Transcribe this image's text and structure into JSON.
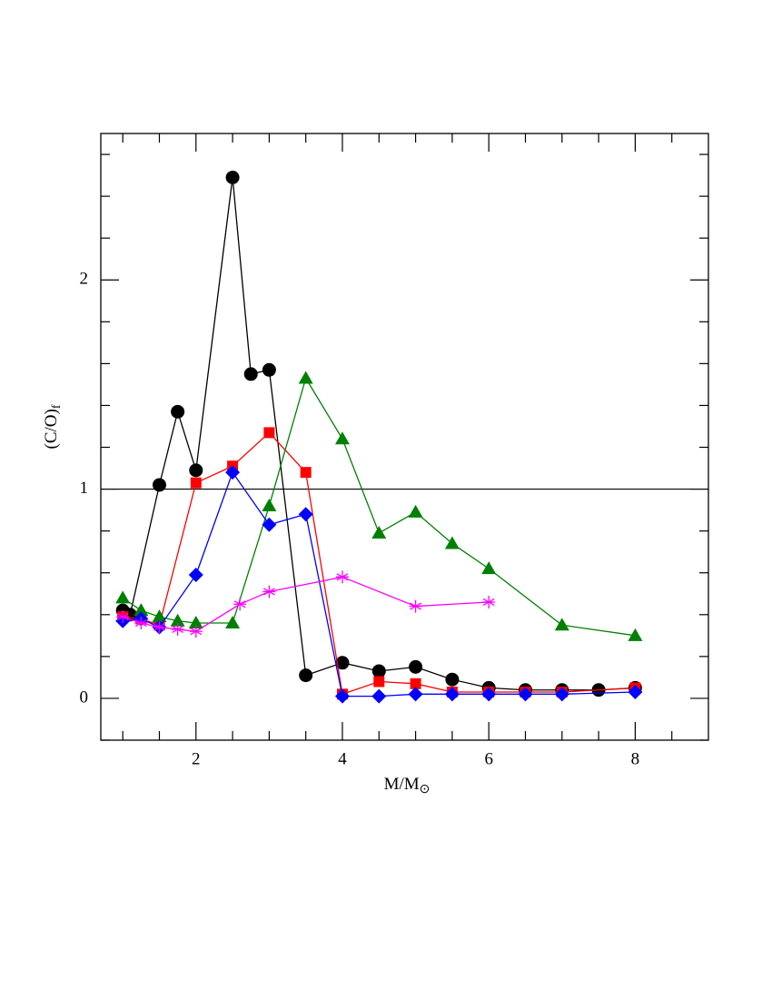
{
  "chart_data": {
    "type": "line",
    "x_label": "M/M",
    "x_label_sub": "⊙",
    "y_label": "(C/O)",
    "y_label_sub": "f",
    "xlim": [
      0.7,
      9
    ],
    "ylim": [
      -0.2,
      2.7
    ],
    "xticks": [
      2,
      4,
      6,
      8
    ],
    "yticks": [
      0,
      1,
      2
    ],
    "xminor_ticks": [
      1,
      1.5,
      2.5,
      3,
      3.5,
      4.5,
      5,
      5.5,
      6.5,
      7,
      7.5,
      8.5
    ],
    "yminor_ticks": [
      -0.2,
      0.2,
      0.4,
      0.6,
      0.8,
      1.2,
      1.4,
      1.6,
      1.8,
      2.2,
      2.4,
      2.6
    ],
    "hline": 1,
    "hline_color": "#000000",
    "series": [
      {
        "color": "#000000",
        "marker": "circle",
        "x": [
          1,
          1.1,
          1.5,
          1.75,
          2,
          2.5,
          2.75,
          3,
          3.5,
          4,
          4.5,
          5,
          5.5,
          6,
          6.5,
          7,
          7.5,
          8
        ],
        "values": [
          0.42,
          0.4,
          1.02,
          1.37,
          1.09,
          2.49,
          1.55,
          1.57,
          0.11,
          0.17,
          0.13,
          0.15,
          0.09,
          0.05,
          0.04,
          0.04,
          0.04,
          0.05
        ]
      },
      {
        "color": "#ff0000",
        "marker": "square",
        "x": [
          1,
          1.25,
          1.5,
          2,
          2.5,
          3,
          3.5,
          4,
          4.5,
          5,
          5.5,
          6,
          6.5,
          7,
          8
        ],
        "values": [
          0.39,
          0.38,
          0.35,
          1.03,
          1.11,
          1.27,
          1.08,
          0.02,
          0.08,
          0.07,
          0.03,
          0.03,
          0.03,
          0.03,
          0.05
        ]
      },
      {
        "color": "#008000",
        "marker": "triangle",
        "x": [
          1,
          1.25,
          1.5,
          1.75,
          2,
          2.5,
          3,
          3.5,
          4,
          4.5,
          5,
          5.5,
          6,
          7,
          8
        ],
        "values": [
          0.48,
          0.42,
          0.39,
          0.37,
          0.36,
          0.36,
          0.92,
          1.53,
          1.24,
          0.79,
          0.89,
          0.74,
          0.62,
          0.35,
          0.3
        ]
      },
      {
        "color": "#0000ff",
        "marker": "diamond",
        "x": [
          1,
          1.25,
          1.5,
          2,
          2.5,
          3,
          3.5,
          4,
          4.5,
          5,
          5.5,
          6,
          6.5,
          7,
          8
        ],
        "values": [
          0.37,
          0.38,
          0.34,
          0.59,
          1.08,
          0.83,
          0.88,
          0.01,
          0.01,
          0.02,
          0.02,
          0.02,
          0.02,
          0.02,
          0.03
        ]
      },
      {
        "color": "#ff00ff",
        "marker": "star",
        "x": [
          1,
          1.25,
          1.5,
          1.75,
          2,
          2.6,
          3,
          4,
          5,
          6
        ],
        "values": [
          0.39,
          0.36,
          0.34,
          0.33,
          0.32,
          0.45,
          0.51,
          0.58,
          0.44,
          0.46
        ]
      }
    ]
  }
}
